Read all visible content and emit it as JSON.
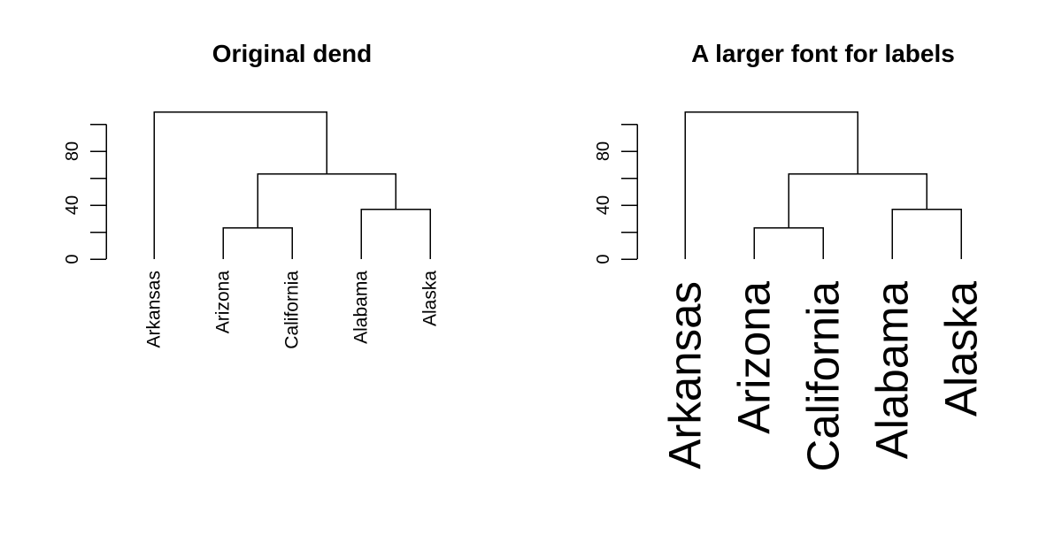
{
  "chart_data": [
    {
      "type": "dendrogram",
      "title": "Original dend",
      "ylim": [
        0,
        100
      ],
      "yticks": [
        0,
        40,
        80
      ],
      "minor_ticks": [
        20,
        60,
        100
      ],
      "leaves": [
        "Arkansas",
        "Arizona",
        "California",
        "Alabama",
        "Alaska"
      ],
      "merges": [
        {
          "left": "leaf:1",
          "right": "leaf:2",
          "height": 23
        },
        {
          "left": "leaf:3",
          "right": "leaf:4",
          "height": 37
        },
        {
          "left": "node:0",
          "right": "node:1",
          "height": 63
        },
        {
          "left": "leaf:0",
          "right": "node:2",
          "height": 109
        }
      ],
      "label_size": "normal"
    },
    {
      "type": "dendrogram",
      "title": "A larger font for labels",
      "ylim": [
        0,
        100
      ],
      "yticks": [
        0,
        40,
        80
      ],
      "minor_ticks": [
        20,
        60,
        100
      ],
      "leaves": [
        "Arkansas",
        "Arizona",
        "California",
        "Alabama",
        "Alaska"
      ],
      "merges": [
        {
          "left": "leaf:1",
          "right": "leaf:2",
          "height": 23
        },
        {
          "left": "leaf:3",
          "right": "leaf:4",
          "height": 37
        },
        {
          "left": "node:0",
          "right": "node:1",
          "height": 63
        },
        {
          "left": "leaf:0",
          "right": "node:2",
          "height": 109
        }
      ],
      "label_size": "large"
    }
  ]
}
